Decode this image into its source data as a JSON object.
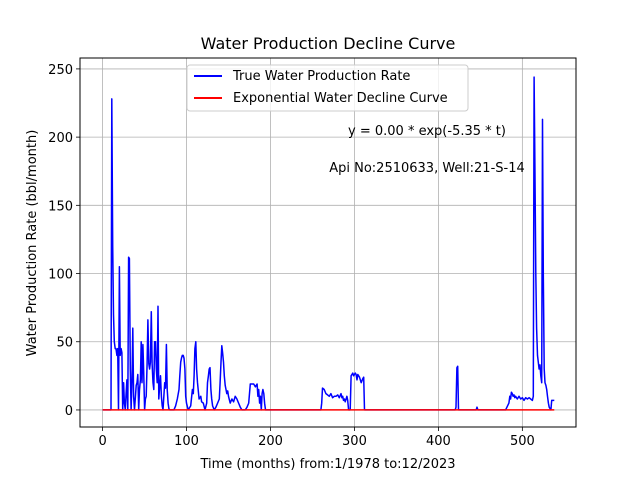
{
  "chart_data": {
    "type": "line",
    "title": "Water Production Decline Curve",
    "xlabel": "Time (months) from:1/1978 to:12/2023",
    "ylabel": "Water Production Rate (bbl/month)",
    "xlim": [
      -26.9,
      563.9
    ],
    "ylim": [
      -12.5,
      258
    ],
    "xticks": [
      0,
      100,
      200,
      300,
      400,
      500
    ],
    "yticks": [
      0,
      50,
      100,
      150,
      200,
      250
    ],
    "grid": true,
    "legend_position": "upper-center",
    "annotations": [
      {
        "text": "y = 0.00 * exp(-5.35 * t)"
      },
      {
        "text": "Api No:2510633, Well:21-S-14"
      }
    ],
    "series": [
      {
        "name": "True Water Production Rate",
        "color": "#0000ff",
        "points": [
          [
            0,
            0
          ],
          [
            10,
            0
          ],
          [
            11,
            228
          ],
          [
            12,
            120
          ],
          [
            13,
            70
          ],
          [
            14,
            50
          ],
          [
            15,
            45
          ],
          [
            16,
            45
          ],
          [
            17,
            40
          ],
          [
            18,
            45
          ],
          [
            19,
            0
          ],
          [
            20,
            105
          ],
          [
            21,
            40
          ],
          [
            22,
            45
          ],
          [
            23,
            42
          ],
          [
            24,
            0
          ],
          [
            25,
            20
          ],
          [
            26,
            5
          ],
          [
            27,
            0
          ],
          [
            28,
            12
          ],
          [
            29,
            22
          ],
          [
            30,
            0
          ],
          [
            31,
            112
          ],
          [
            32,
            111
          ],
          [
            33,
            30
          ],
          [
            34,
            0
          ],
          [
            35,
            22
          ],
          [
            36,
            60
          ],
          [
            37,
            10
          ],
          [
            38,
            0
          ],
          [
            40,
            18
          ],
          [
            41,
            20
          ],
          [
            42,
            26
          ],
          [
            43,
            0
          ],
          [
            44,
            15
          ],
          [
            45,
            22
          ],
          [
            46,
            50
          ],
          [
            47,
            20
          ],
          [
            48,
            48
          ],
          [
            49,
            28
          ],
          [
            50,
            0
          ],
          [
            51,
            8
          ],
          [
            52,
            10
          ],
          [
            53,
            34
          ],
          [
            54,
            66
          ],
          [
            55,
            34
          ],
          [
            56,
            30
          ],
          [
            57,
            35
          ],
          [
            58,
            72
          ],
          [
            59,
            34
          ],
          [
            60,
            20
          ],
          [
            61,
            15
          ],
          [
            62,
            50
          ],
          [
            63,
            50
          ],
          [
            64,
            30
          ],
          [
            65,
            20
          ],
          [
            66,
            76
          ],
          [
            67,
            8
          ],
          [
            68,
            18
          ],
          [
            69,
            25
          ],
          [
            70,
            10
          ],
          [
            71,
            3
          ],
          [
            72,
            0
          ],
          [
            74,
            20
          ],
          [
            75,
            16
          ],
          [
            76,
            48
          ],
          [
            77,
            15
          ],
          [
            78,
            5
          ],
          [
            79,
            1
          ],
          [
            80,
            0
          ],
          [
            85,
            0
          ],
          [
            87,
            3
          ],
          [
            89,
            8
          ],
          [
            91,
            15
          ],
          [
            92,
            25
          ],
          [
            93,
            35
          ],
          [
            94,
            38
          ],
          [
            95,
            40
          ],
          [
            96,
            40
          ],
          [
            97,
            38
          ],
          [
            98,
            30
          ],
          [
            99,
            10
          ],
          [
            100,
            5
          ],
          [
            102,
            0
          ],
          [
            105,
            3
          ],
          [
            107,
            15
          ],
          [
            108,
            12
          ],
          [
            109,
            25
          ],
          [
            110,
            45
          ],
          [
            111,
            50
          ],
          [
            112,
            30
          ],
          [
            113,
            20
          ],
          [
            115,
            8
          ],
          [
            117,
            10
          ],
          [
            118,
            6
          ],
          [
            120,
            5
          ],
          [
            122,
            0
          ],
          [
            124,
            5
          ],
          [
            125,
            20
          ],
          [
            126,
            25
          ],
          [
            127,
            30
          ],
          [
            128,
            31
          ],
          [
            129,
            15
          ],
          [
            130,
            8
          ],
          [
            131,
            3
          ],
          [
            133,
            0
          ],
          [
            135,
            2
          ],
          [
            137,
            5
          ],
          [
            139,
            8
          ],
          [
            140,
            20
          ],
          [
            141,
            35
          ],
          [
            142,
            47
          ],
          [
            143,
            42
          ],
          [
            144,
            35
          ],
          [
            145,
            25
          ],
          [
            146,
            18
          ],
          [
            147,
            15
          ],
          [
            148,
            12
          ],
          [
            149,
            14
          ],
          [
            150,
            10
          ],
          [
            152,
            5
          ],
          [
            154,
            8
          ],
          [
            156,
            6
          ],
          [
            158,
            10
          ],
          [
            160,
            8
          ],
          [
            162,
            5
          ],
          [
            164,
            2
          ],
          [
            166,
            0
          ],
          [
            170,
            0
          ],
          [
            172,
            2
          ],
          [
            174,
            5
          ],
          [
            176,
            19
          ],
          [
            178,
            19
          ],
          [
            180,
            19
          ],
          [
            182,
            17
          ],
          [
            184,
            19
          ],
          [
            185,
            10
          ],
          [
            186,
            15
          ],
          [
            187,
            5
          ],
          [
            188,
            10
          ],
          [
            189,
            0
          ],
          [
            190,
            12
          ],
          [
            191,
            15
          ],
          [
            192,
            12
          ],
          [
            193,
            5
          ],
          [
            194,
            0
          ],
          [
            198,
            0
          ],
          [
            260,
            0
          ],
          [
            261,
            5
          ],
          [
            262,
            16
          ],
          [
            264,
            15
          ],
          [
            266,
            12
          ],
          [
            268,
            11
          ],
          [
            270,
            10
          ],
          [
            272,
            12
          ],
          [
            274,
            9
          ],
          [
            276,
            10
          ],
          [
            278,
            10
          ],
          [
            280,
            11
          ],
          [
            282,
            9
          ],
          [
            284,
            12
          ],
          [
            285,
            9
          ],
          [
            286,
            10
          ],
          [
            287,
            7
          ],
          [
            288,
            8
          ],
          [
            289,
            6
          ],
          [
            290,
            8
          ],
          [
            291,
            10
          ],
          [
            292,
            7
          ],
          [
            293,
            0
          ],
          [
            295,
            0
          ],
          [
            296,
            25
          ],
          [
            297,
            26
          ],
          [
            298,
            27
          ],
          [
            299,
            25
          ],
          [
            300,
            26
          ],
          [
            301,
            27
          ],
          [
            302,
            26
          ],
          [
            303,
            22
          ],
          [
            304,
            26
          ],
          [
            306,
            24
          ],
          [
            308,
            20
          ],
          [
            310,
            23
          ],
          [
            311,
            24
          ],
          [
            312,
            0
          ],
          [
            320,
            0
          ],
          [
            420,
            0
          ],
          [
            421,
            2
          ],
          [
            422,
            31
          ],
          [
            423,
            32
          ],
          [
            424,
            0
          ],
          [
            445,
            0
          ],
          [
            446,
            2
          ],
          [
            447,
            0
          ],
          [
            480,
            0
          ],
          [
            484,
            5
          ],
          [
            485,
            10
          ],
          [
            486,
            8
          ],
          [
            487,
            13
          ],
          [
            488,
            12
          ],
          [
            489,
            10
          ],
          [
            490,
            11
          ],
          [
            491,
            9
          ],
          [
            492,
            10
          ],
          [
            494,
            8
          ],
          [
            496,
            10
          ],
          [
            498,
            8
          ],
          [
            500,
            9
          ],
          [
            502,
            7
          ],
          [
            504,
            9
          ],
          [
            506,
            8
          ],
          [
            508,
            9
          ],
          [
            510,
            8
          ],
          [
            512,
            7
          ],
          [
            513,
            10
          ],
          [
            514,
            244
          ],
          [
            515,
            180
          ],
          [
            516,
            100
          ],
          [
            517,
            60
          ],
          [
            518,
            40
          ],
          [
            519,
            35
          ],
          [
            520,
            30
          ],
          [
            521,
            33
          ],
          [
            522,
            25
          ],
          [
            523,
            20
          ],
          [
            524,
            213
          ],
          [
            525,
            100
          ],
          [
            526,
            30
          ],
          [
            527,
            20
          ],
          [
            528,
            18
          ],
          [
            529,
            15
          ],
          [
            530,
            10
          ],
          [
            531,
            5
          ],
          [
            532,
            2
          ],
          [
            533,
            1
          ],
          [
            534,
            0
          ],
          [
            535,
            7
          ],
          [
            538,
            7
          ]
        ]
      },
      {
        "name": "Exponential Water Decline Curve",
        "color": "#ff0000",
        "points": [
          [
            0,
            0
          ],
          [
            538,
            0
          ]
        ]
      }
    ]
  }
}
